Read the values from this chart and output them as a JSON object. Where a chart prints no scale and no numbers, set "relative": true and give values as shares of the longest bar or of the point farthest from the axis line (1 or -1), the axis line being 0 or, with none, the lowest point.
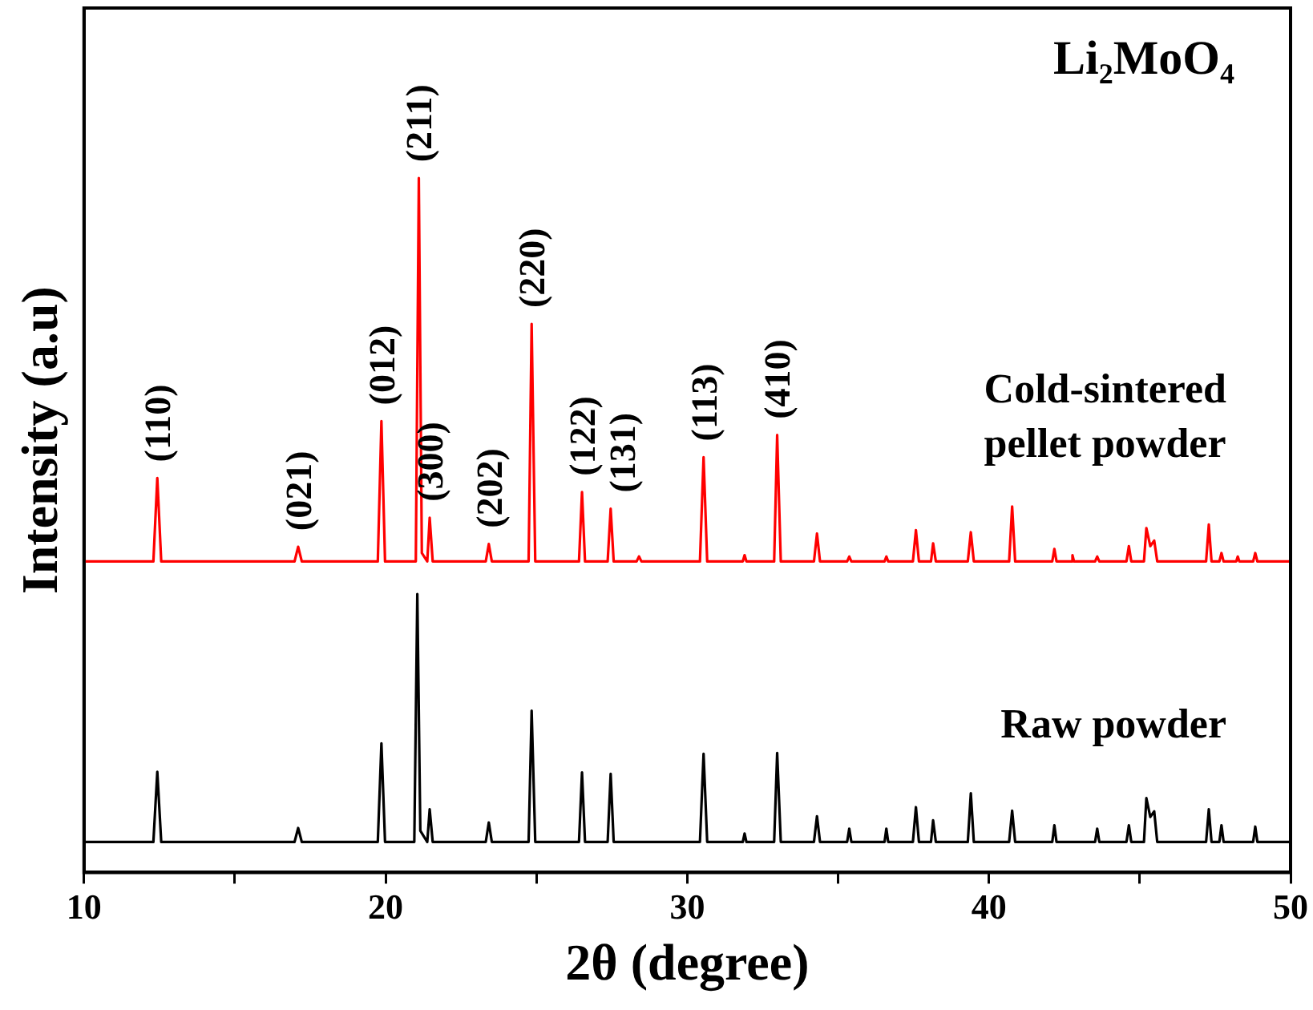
{
  "chart_data": {
    "type": "line",
    "title": "Li₂MoO₄",
    "xlabel": "2θ (degree)",
    "ylabel": "Intensity (a.u)",
    "relative": true,
    "legend": false,
    "grid": false,
    "marker": "none",
    "line_style": "solid",
    "xlim": [
      10,
      50
    ],
    "xticks": [
      10,
      {
        "value": 15,
        "label": null
      },
      20,
      {
        "value": 25,
        "label": null
      },
      30,
      {
        "value": 35,
        "label": null
      },
      40,
      {
        "value": 45,
        "label": null
      },
      50
    ],
    "series": [
      {
        "name": "Cold-sintered pellet powder",
        "color": "#ff0000",
        "x": [
          10,
          12.3,
          12.43,
          12.56,
          16.98,
          17.1,
          17.22,
          19.74,
          19.86,
          19.98,
          21.0,
          21.1,
          21.2,
          21.38,
          21.46,
          21.56,
          23.32,
          23.42,
          23.52,
          24.74,
          24.84,
          24.96,
          26.41,
          26.51,
          26.61,
          27.36,
          27.46,
          27.56,
          28.32,
          28.4,
          28.48,
          30.42,
          30.54,
          30.66,
          31.84,
          31.9,
          31.96,
          32.88,
          32.98,
          33.1,
          34.2,
          34.3,
          34.4,
          35.3,
          35.37,
          35.44,
          36.54,
          36.6,
          36.66,
          37.48,
          37.58,
          37.68,
          38.08,
          38.15,
          38.24,
          39.3,
          39.4,
          39.5,
          40.67,
          40.77,
          40.87,
          42.1,
          42.17,
          42.24,
          42.72,
          42.77,
          42.82,
          43.52,
          43.59,
          43.66,
          44.56,
          44.64,
          44.72,
          45.14,
          45.22,
          45.35,
          45.48,
          45.58,
          47.2,
          47.29,
          47.38,
          47.64,
          47.71,
          47.78,
          48.2,
          48.25,
          48.3,
          48.76,
          48.83,
          48.9,
          50
        ],
        "values": [
          0.448,
          0.448,
          0.568,
          0.448,
          0.448,
          0.469,
          0.448,
          0.448,
          0.65,
          0.448,
          0.448,
          1.0,
          0.46,
          0.448,
          0.511,
          0.448,
          0.448,
          0.473,
          0.448,
          0.448,
          0.79,
          0.448,
          0.448,
          0.548,
          0.448,
          0.448,
          0.524,
          0.448,
          0.448,
          0.455,
          0.448,
          0.448,
          0.598,
          0.448,
          0.448,
          0.457,
          0.448,
          0.448,
          0.63,
          0.448,
          0.448,
          0.488,
          0.448,
          0.448,
          0.455,
          0.448,
          0.448,
          0.455,
          0.448,
          0.448,
          0.493,
          0.448,
          0.448,
          0.474,
          0.448,
          0.448,
          0.49,
          0.448,
          0.448,
          0.527,
          0.448,
          0.448,
          0.466,
          0.448,
          0.448,
          0.457,
          0.448,
          0.448,
          0.455,
          0.448,
          0.448,
          0.47,
          0.448,
          0.448,
          0.496,
          0.47,
          0.478,
          0.448,
          0.448,
          0.501,
          0.448,
          0.448,
          0.46,
          0.448,
          0.448,
          0.455,
          0.448,
          0.448,
          0.46,
          0.448,
          0.448
        ]
      },
      {
        "name": "Raw powder",
        "color": "#000000",
        "x": [
          10,
          12.3,
          12.43,
          12.56,
          16.98,
          17.1,
          17.22,
          19.74,
          19.86,
          19.98,
          20.95,
          21.05,
          21.15,
          21.38,
          21.46,
          21.56,
          23.32,
          23.42,
          23.52,
          24.74,
          24.84,
          24.96,
          26.41,
          26.51,
          26.61,
          27.36,
          27.46,
          27.56,
          30.42,
          30.54,
          30.66,
          31.84,
          31.9,
          31.96,
          32.88,
          32.98,
          33.1,
          34.2,
          34.3,
          34.4,
          35.3,
          35.37,
          35.44,
          36.54,
          36.6,
          36.66,
          37.48,
          37.58,
          37.68,
          38.08,
          38.15,
          38.24,
          39.3,
          39.4,
          39.5,
          40.67,
          40.77,
          40.87,
          42.1,
          42.17,
          42.24,
          43.52,
          43.59,
          43.66,
          44.56,
          44.64,
          44.72,
          45.14,
          45.22,
          45.35,
          45.48,
          45.58,
          47.2,
          47.29,
          47.38,
          47.64,
          47.71,
          47.78,
          48.76,
          48.83,
          48.9,
          50
        ],
        "values": [
          0.044,
          0.044,
          0.145,
          0.044,
          0.044,
          0.064,
          0.044,
          0.044,
          0.186,
          0.044,
          0.044,
          0.401,
          0.06,
          0.044,
          0.091,
          0.044,
          0.044,
          0.072,
          0.044,
          0.044,
          0.233,
          0.044,
          0.044,
          0.144,
          0.044,
          0.044,
          0.142,
          0.044,
          0.044,
          0.171,
          0.044,
          0.044,
          0.056,
          0.044,
          0.044,
          0.172,
          0.044,
          0.044,
          0.081,
          0.044,
          0.044,
          0.063,
          0.044,
          0.044,
          0.063,
          0.044,
          0.044,
          0.094,
          0.044,
          0.044,
          0.075,
          0.044,
          0.044,
          0.114,
          0.044,
          0.044,
          0.089,
          0.044,
          0.044,
          0.068,
          0.044,
          0.044,
          0.063,
          0.044,
          0.044,
          0.068,
          0.044,
          0.044,
          0.107,
          0.08,
          0.088,
          0.044,
          0.044,
          0.091,
          0.044,
          0.044,
          0.068,
          0.044,
          0.044,
          0.066,
          0.044,
          0.044
        ]
      }
    ],
    "annotations": [
      {
        "text": "(110)",
        "x": 12.43,
        "y": 0.568
      },
      {
        "text": "(021)",
        "x": 17.1,
        "y": 0.469
      },
      {
        "text": "(012)",
        "x": 19.86,
        "y": 0.65
      },
      {
        "text": "(211)",
        "x": 21.1,
        "y": 1.0
      },
      {
        "text": "(300)",
        "x": 21.46,
        "y": 0.511
      },
      {
        "text": "(202)",
        "x": 23.42,
        "y": 0.473
      },
      {
        "text": "(220)",
        "x": 24.84,
        "y": 0.79
      },
      {
        "text": "(122)",
        "x": 26.51,
        "y": 0.548
      },
      {
        "text": "(131)",
        "x": 27.46,
        "y": 0.524
      },
      {
        "text": "(113)",
        "x": 30.54,
        "y": 0.598
      },
      {
        "text": "(410)",
        "x": 32.98,
        "y": 0.63
      }
    ]
  }
}
